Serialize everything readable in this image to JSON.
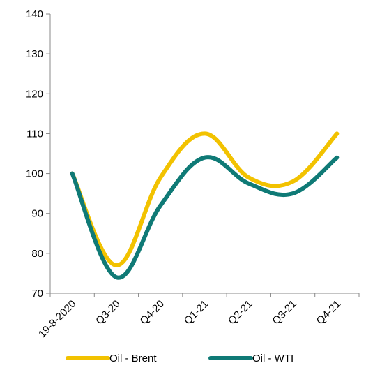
{
  "chart_data": {
    "type": "line",
    "categories": [
      "19-8-2020",
      "Q3-20",
      "Q4-20",
      "Q1-21",
      "Q2-21",
      "Q3-21",
      "Q4-21"
    ],
    "series": [
      {
        "name": "Oil - Brent",
        "color": "#F2C200",
        "values": [
          100,
          77,
          99,
          110,
          99,
          98,
          110
        ]
      },
      {
        "name": "Oil - WTI",
        "color": "#0F7A76",
        "values": [
          100,
          74,
          92,
          104,
          97.5,
          95,
          104
        ]
      }
    ],
    "ylim": [
      70,
      140
    ],
    "yticks": [
      70,
      80,
      90,
      100,
      110,
      120,
      130,
      140
    ],
    "grid": false,
    "legend": "bottom",
    "title": "",
    "xlabel": "",
    "ylabel": ""
  }
}
